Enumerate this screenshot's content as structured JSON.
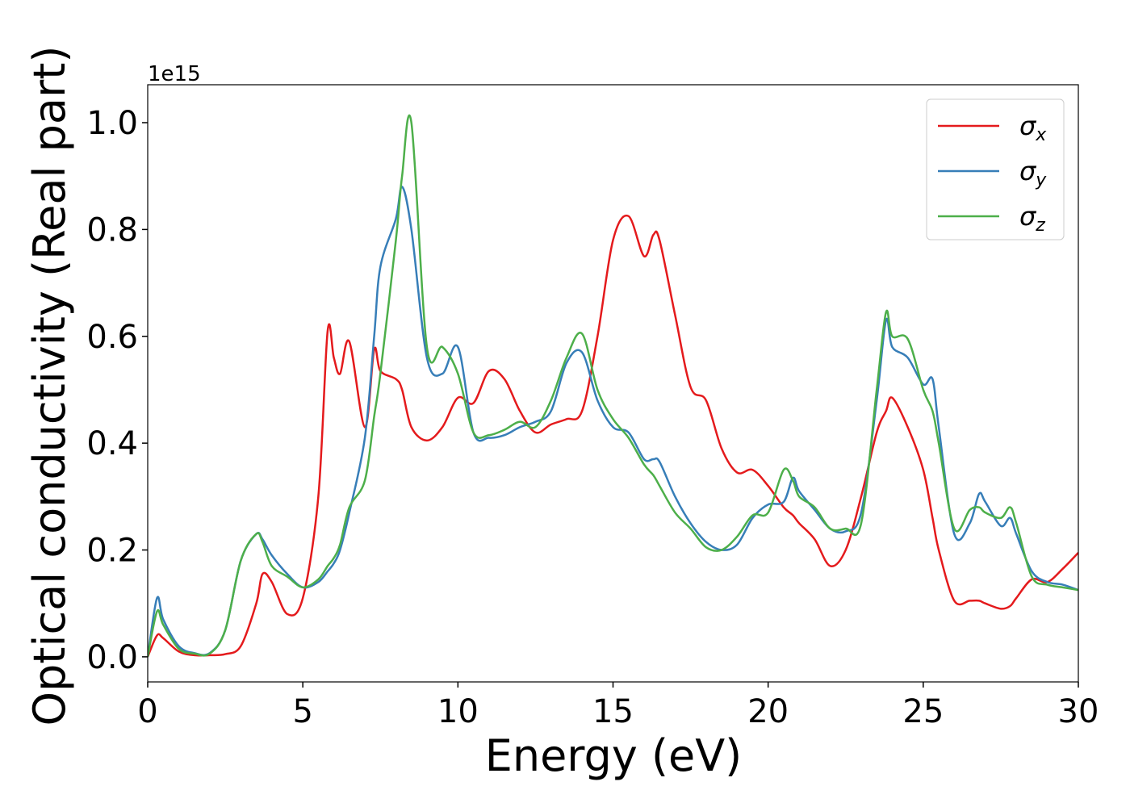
{
  "chart_data": {
    "type": "line",
    "x_label": "Energy (eV)",
    "y_label": "Optical conductivity (Real part)",
    "y_offset_label": "1e15",
    "x": [
      0,
      0.3,
      0.5,
      1,
      1.5,
      2,
      2.5,
      3,
      3.5,
      3.7,
      4,
      4.5,
      5,
      5.5,
      5.8,
      6,
      6.2,
      6.5,
      7,
      7.3,
      7.5,
      8,
      8.2,
      8.5,
      9,
      9.5,
      10,
      10.5,
      11,
      11.5,
      12,
      12.5,
      13,
      13.5,
      14,
      14.5,
      15,
      15.5,
      16,
      16.3,
      16.5,
      17,
      17.5,
      18,
      18.5,
      19,
      19.5,
      20,
      20.5,
      20.8,
      21,
      21.5,
      22,
      22.5,
      23,
      23.5,
      23.8,
      24,
      24.5,
      25,
      25.3,
      25.5,
      26,
      26.5,
      26.8,
      27,
      27.5,
      27.8,
      28,
      28.5,
      29,
      29.5,
      30
    ],
    "series": [
      {
        "name": "σx",
        "color": "#e41a1c",
        "values": [
          0,
          0.04,
          0.035,
          0.01,
          0.003,
          0.003,
          0.005,
          0.02,
          0.1,
          0.155,
          0.14,
          0.08,
          0.11,
          0.3,
          0.61,
          0.56,
          0.53,
          0.59,
          0.43,
          0.575,
          0.535,
          0.52,
          0.5,
          0.43,
          0.405,
          0.43,
          0.485,
          0.475,
          0.535,
          0.52,
          0.46,
          0.42,
          0.435,
          0.445,
          0.46,
          0.6,
          0.78,
          0.825,
          0.75,
          0.79,
          0.78,
          0.64,
          0.505,
          0.48,
          0.39,
          0.345,
          0.35,
          0.32,
          0.28,
          0.265,
          0.25,
          0.22,
          0.17,
          0.2,
          0.3,
          0.42,
          0.46,
          0.485,
          0.43,
          0.35,
          0.26,
          0.2,
          0.105,
          0.105,
          0.105,
          0.1,
          0.09,
          0.095,
          0.11,
          0.145,
          0.14,
          0.165,
          0.195
        ]
      },
      {
        "name": "σy",
        "color": "#377eb8",
        "values": [
          0,
          0.11,
          0.07,
          0.02,
          0.007,
          0.007,
          0.05,
          0.18,
          0.23,
          0.22,
          0.19,
          0.155,
          0.13,
          0.14,
          0.16,
          0.175,
          0.2,
          0.27,
          0.41,
          0.6,
          0.73,
          0.82,
          0.88,
          0.8,
          0.56,
          0.53,
          0.58,
          0.42,
          0.41,
          0.415,
          0.43,
          0.44,
          0.46,
          0.55,
          0.57,
          0.48,
          0.43,
          0.42,
          0.37,
          0.37,
          0.365,
          0.3,
          0.25,
          0.215,
          0.2,
          0.21,
          0.26,
          0.285,
          0.29,
          0.335,
          0.31,
          0.275,
          0.24,
          0.235,
          0.27,
          0.48,
          0.63,
          0.58,
          0.56,
          0.51,
          0.52,
          0.43,
          0.23,
          0.25,
          0.305,
          0.29,
          0.245,
          0.26,
          0.23,
          0.16,
          0.14,
          0.135,
          0.125
        ]
      },
      {
        "name": "σz",
        "color": "#4daf4a",
        "values": [
          0,
          0.085,
          0.06,
          0.015,
          0.006,
          0.006,
          0.05,
          0.18,
          0.23,
          0.215,
          0.17,
          0.15,
          0.13,
          0.145,
          0.17,
          0.185,
          0.21,
          0.28,
          0.33,
          0.45,
          0.53,
          0.78,
          0.9,
          1.0,
          0.58,
          0.58,
          0.53,
          0.42,
          0.415,
          0.425,
          0.44,
          0.43,
          0.48,
          0.56,
          0.605,
          0.5,
          0.445,
          0.41,
          0.36,
          0.34,
          0.32,
          0.27,
          0.24,
          0.205,
          0.2,
          0.225,
          0.265,
          0.27,
          0.35,
          0.33,
          0.3,
          0.28,
          0.24,
          0.24,
          0.25,
          0.5,
          0.645,
          0.6,
          0.595,
          0.5,
          0.46,
          0.4,
          0.24,
          0.275,
          0.28,
          0.27,
          0.26,
          0.28,
          0.25,
          0.15,
          0.135,
          0.13,
          0.125
        ]
      }
    ],
    "xlim": [
      0,
      30
    ],
    "xticks": [
      0,
      5,
      10,
      15,
      20,
      25,
      30
    ],
    "ylim": [
      -0.047,
      1.071
    ],
    "yticks": [
      {
        "value": 0,
        "label": "0.0"
      },
      0.2,
      0.4,
      0.6,
      0.8,
      {
        "value": 1,
        "label": "1.0"
      }
    ],
    "grid": false,
    "legend": "upper right"
  }
}
